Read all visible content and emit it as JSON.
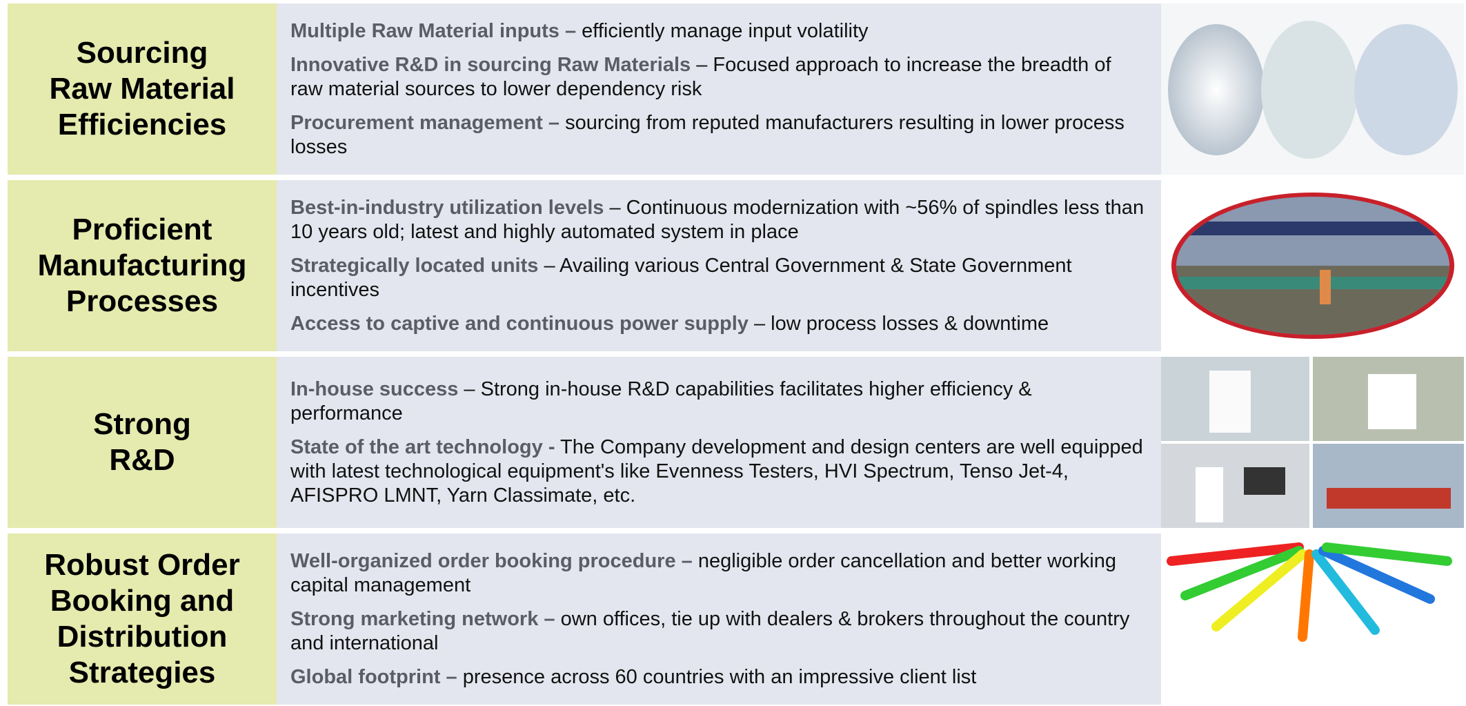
{
  "rows": [
    {
      "title": [
        "Sourcing",
        "Raw Material",
        "Efficiencies"
      ],
      "items": [
        {
          "bold": "Multiple Raw Material inputs –",
          "text": " efficiently manage input volatility"
        },
        {
          "bold": "Innovative R&D in sourcing Raw Materials",
          "text": " – Focused approach to  increase the breadth of raw material sources to lower dependency risk"
        },
        {
          "bold": "Procurement management –",
          "text": " sourcing from reputed manufacturers resulting in lower process losses"
        }
      ]
    },
    {
      "title": [
        "Proficient",
        "Manufacturing",
        "Processes"
      ],
      "items": [
        {
          "bold": "Best-in-industry utilization levels",
          "text": " – Continuous modernization with ~56% of spindles less than 10 years old; latest and highly automated system in place"
        },
        {
          "bold": "Strategically located units",
          "text": " – Availing various Central Government & State Government incentives"
        },
        {
          "bold": "Access to captive and continuous power supply",
          "text": " – low process losses & downtime"
        }
      ]
    },
    {
      "title": [
        "Strong",
        "R&D"
      ],
      "items": [
        {
          "bold": "In-house success",
          "text": " – Strong in-house R&D capabilities facilitates higher efficiency & performance"
        },
        {
          "bold": "State of the art technology -",
          "text": " The Company development and design centers are well equipped with latest technological equipment's like Evenness Testers, HVI Spectrum, Tenso Jet-4, AFISPRO LMNT, Yarn Classimate, etc."
        }
      ]
    },
    {
      "title": [
        "Robust Order",
        "Booking and",
        "Distribution",
        "Strategies"
      ],
      "items": [
        {
          "bold": "Well-organized order booking procedure –",
          "text": " negligible order cancellation and better working capital management"
        },
        {
          "bold": "Strong marketing network –",
          "text": " own offices, tie up with dealers & brokers throughout the country and international"
        },
        {
          "bold": "Global footprint –",
          "text": " presence across 60 countries with an impressive client list"
        }
      ]
    }
  ]
}
